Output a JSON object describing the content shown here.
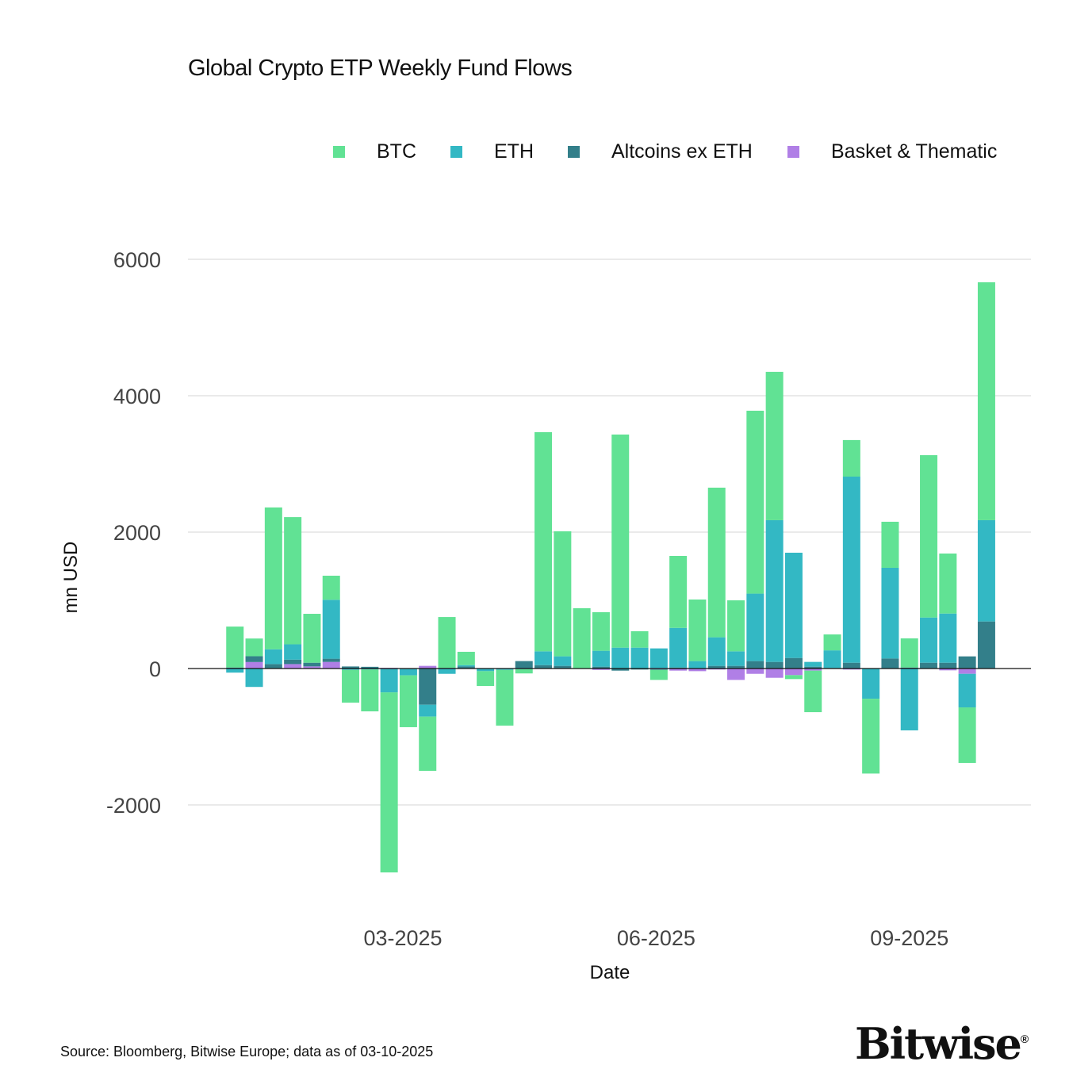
{
  "chart_data": {
    "type": "bar",
    "stacking": "relative",
    "title": "Global Crypto ETP Weekly Fund Flows",
    "xlabel": "Date",
    "ylabel": "mn USD",
    "ylim": [
      -3700,
      6700
    ],
    "yticks": [
      6000,
      4000,
      2000,
      0,
      -2000
    ],
    "xtick_labels": [
      {
        "date": "2025-03-01",
        "label": "03-2025"
      },
      {
        "date": "2025-06-01",
        "label": "06-2025"
      },
      {
        "date": "2025-09-01",
        "label": "09-2025"
      }
    ],
    "grid": true,
    "legend_placement": "top-right",
    "x_start": "2024-12-30",
    "x_step_days": 7,
    "series": [
      {
        "name": "BTC",
        "color": "#61e294",
        "values": [
          600,
          260,
          2080,
          1865,
          717,
          353,
          -480,
          -613,
          -2640,
          -760,
          -795,
          745,
          195,
          -217,
          -817,
          -62,
          3214,
          1833,
          880,
          566,
          3125,
          241,
          -147,
          1055,
          903,
          2194,
          748,
          2682,
          2175,
          -58,
          -609,
          234,
          536,
          -1097,
          675,
          427,
          2381,
          880,
          -814,
          3489
        ]
      },
      {
        "name": "ETH",
        "color": "#33b8c4",
        "values": [
          -60,
          -270,
          217,
          225,
          0,
          864,
          -20,
          -15,
          -340,
          -90,
          -174,
          -78,
          20,
          -39,
          -20,
          -10,
          202,
          140,
          0,
          233,
          306,
          306,
          295,
          581,
          109,
          419,
          213,
          989,
          2078,
          1543,
          70,
          256,
          2729,
          -438,
          1330,
          -907,
          663,
          721,
          -492,
          1485
        ]
      },
      {
        "name": "Altcoins ex ETH",
        "color": "#337f8a",
        "values": [
          15,
          85,
          65,
          65,
          54,
          47,
          30,
          25,
          -10,
          -10,
          -531,
          10,
          30,
          0,
          0,
          109,
          50,
          39,
          0,
          27,
          -31,
          -15,
          -10,
          15,
          0,
          39,
          39,
          109,
          97,
          155,
          27,
          10,
          85,
          0,
          147,
          15,
          85,
          85,
          178,
          690
        ]
      },
      {
        "name": "Basket & Thematic",
        "color": "#b07fe6",
        "values": [
          0,
          95,
          0,
          65,
          31,
          97,
          0,
          0,
          10,
          0,
          39,
          0,
          0,
          0,
          0,
          0,
          0,
          0,
          5,
          -20,
          0,
          0,
          -10,
          -31,
          -39,
          -15,
          -167,
          -78,
          -136,
          -97,
          -31,
          0,
          -15,
          -5,
          0,
          0,
          0,
          -27,
          -78,
          0
        ]
      }
    ]
  },
  "source": "Source: Bloomberg, Bitwise Europe; data as of  03-10-2025",
  "logo": {
    "text": "Bitwise",
    "mark": "®"
  }
}
